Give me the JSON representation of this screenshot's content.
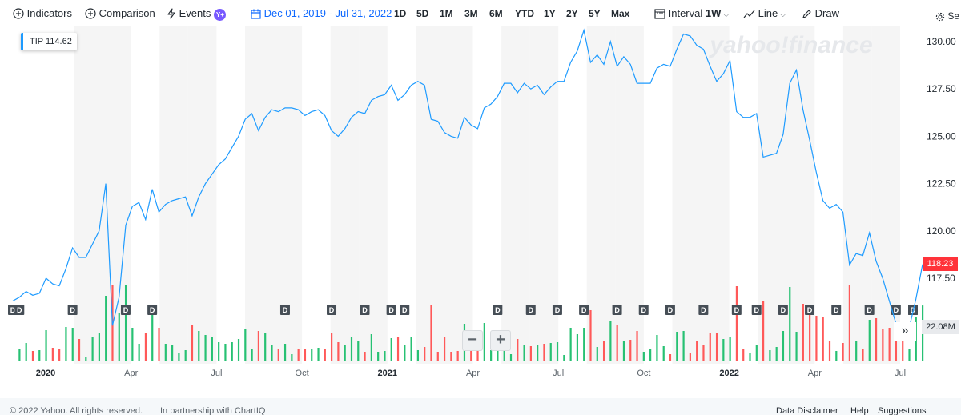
{
  "toolbar": {
    "indicators": "Indicators",
    "comparison": "Comparison",
    "events": "Events",
    "events_badge": "Y+",
    "date_range": "Dec 01, 2019 - Jul 31, 2022",
    "ranges": [
      "1D",
      "5D",
      "1M",
      "3M",
      "6M",
      "YTD",
      "1Y",
      "2Y",
      "5Y",
      "Max"
    ],
    "interval_label": "Interval",
    "interval_value": "1W",
    "chart_type": "Line",
    "draw": "Draw",
    "settings": "Se"
  },
  "watermark": "yahoo!finance",
  "symbol_badge": {
    "symbol": "TIP",
    "value": "114.62"
  },
  "last_price": "118.23",
  "volume_label": "22.08M",
  "footer": {
    "copyright": "© 2022 Yahoo. All rights reserved.",
    "partner": "In partnership with ChartIQ",
    "links": [
      "Data Disclaimer",
      "Help",
      "Suggestions"
    ]
  },
  "colors": {
    "line": "#1e9bff",
    "up": "#27c173",
    "down": "#ff5959",
    "accent": "#0f69ff",
    "last_price_bg": "#ff333a",
    "shade": "#f5f5f5"
  },
  "chart_data": {
    "type": "line",
    "symbol": "TIP",
    "yticks": [
      130.0,
      127.5,
      125.0,
      122.5,
      120.0,
      117.5
    ],
    "ytick_labels": [
      "130.00",
      "127.50",
      "125.00",
      "122.50",
      "120.00",
      "117.50"
    ],
    "ylim": [
      114.5,
      130.75
    ],
    "xlabels": [
      {
        "label": "2020",
        "date": "2020-01"
      },
      {
        "label": "Apr",
        "date": "2020-04"
      },
      {
        "label": "Jul",
        "date": "2020-07"
      },
      {
        "label": "Oct",
        "date": "2020-10"
      },
      {
        "label": "2021",
        "date": "2021-01"
      },
      {
        "label": "Apr",
        "date": "2021-04"
      },
      {
        "label": "Jul",
        "date": "2021-07"
      },
      {
        "label": "Oct",
        "date": "2021-10"
      },
      {
        "label": "2022",
        "date": "2022-01"
      },
      {
        "label": "Apr",
        "date": "2022-04"
      },
      {
        "label": "Jul",
        "date": "2022-07"
      }
    ],
    "shaded_months": [
      "2020-02",
      "2020-03",
      "2020-05",
      "2020-06",
      "2020-08",
      "2020-09",
      "2020-11",
      "2020-12",
      "2021-02",
      "2021-03",
      "2021-05",
      "2021-06",
      "2021-08",
      "2021-09",
      "2021-11",
      "2021-12",
      "2022-02",
      "2022-03",
      "2022-05",
      "2022-06"
    ],
    "price": [
      116.3,
      116.5,
      116.8,
      116.6,
      116.7,
      117.5,
      117.2,
      117.1,
      118.0,
      119.1,
      118.6,
      118.6,
      119.3,
      120.0,
      122.5,
      115.0,
      116.5,
      120.3,
      121.3,
      121.5,
      120.6,
      122.2,
      121.0,
      121.4,
      121.6,
      121.7,
      121.8,
      120.8,
      121.8,
      122.5,
      123.0,
      123.5,
      123.8,
      124.4,
      125.0,
      125.9,
      126.2,
      125.3,
      126.0,
      126.4,
      126.3,
      126.5,
      126.5,
      126.4,
      126.1,
      126.3,
      126.4,
      126.1,
      125.3,
      125.0,
      125.4,
      126.0,
      126.3,
      126.2,
      126.9,
      127.1,
      127.2,
      127.7,
      126.9,
      127.2,
      127.7,
      127.9,
      127.7,
      125.9,
      125.8,
      125.2,
      125.0,
      124.9,
      126.0,
      125.6,
      125.4,
      126.5,
      126.7,
      127.1,
      127.8,
      127.8,
      127.3,
      127.8,
      127.5,
      127.7,
      127.2,
      127.6,
      127.9,
      127.9,
      128.9,
      129.5,
      130.6,
      128.9,
      129.3,
      128.8,
      130.0,
      128.7,
      129.2,
      128.8,
      127.8,
      127.8,
      127.8,
      128.6,
      128.8,
      128.7,
      129.6,
      130.4,
      130.3,
      129.8,
      129.6,
      128.7,
      127.9,
      128.3,
      129.0,
      126.3,
      126.0,
      126.0,
      126.2,
      123.9,
      124.0,
      124.1,
      125.1,
      127.8,
      128.5,
      126.4,
      124.8,
      123.1,
      121.6,
      121.2,
      121.4,
      121.0,
      118.2,
      118.8,
      118.7,
      119.9,
      118.4,
      117.5,
      116.3,
      115.1,
      114.6,
      114.9,
      116.4,
      118.23
    ]
  }
}
